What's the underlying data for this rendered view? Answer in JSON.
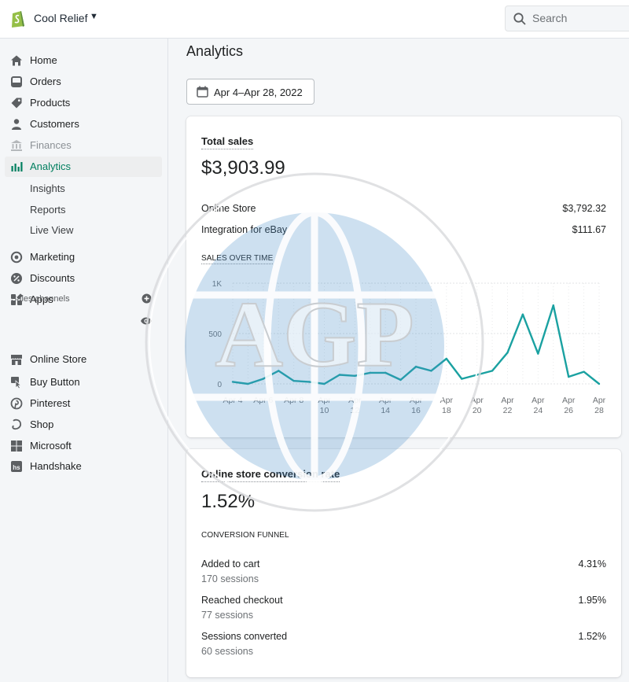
{
  "topbar": {
    "store_name": "Cool Relief",
    "search_placeholder": "Search"
  },
  "sidebar": {
    "items": [
      {
        "label": "Home",
        "icon": "home-icon"
      },
      {
        "label": "Orders",
        "icon": "orders-icon"
      },
      {
        "label": "Products",
        "icon": "tag-icon"
      },
      {
        "label": "Customers",
        "icon": "person-icon"
      },
      {
        "label": "Finances",
        "icon": "bank-icon"
      },
      {
        "label": "Analytics",
        "icon": "bar-chart-icon"
      },
      {
        "label": "Insights"
      },
      {
        "label": "Reports"
      },
      {
        "label": "Live View"
      },
      {
        "label": "Marketing",
        "icon": "target-icon"
      },
      {
        "label": "Discounts",
        "icon": "discount-icon"
      },
      {
        "label": "Apps",
        "icon": "apps-icon"
      }
    ],
    "sales_channels_title": "Sales channels",
    "channels": [
      {
        "label": "Online Store",
        "icon": "store-icon"
      },
      {
        "label": "Buy Button",
        "icon": "buy-button-icon"
      },
      {
        "label": "Pinterest",
        "icon": "pinterest-icon"
      },
      {
        "label": "Shop",
        "icon": "shop-icon"
      },
      {
        "label": "Microsoft",
        "icon": "microsoft-icon"
      },
      {
        "label": "Handshake",
        "icon": "handshake-icon"
      }
    ]
  },
  "main": {
    "title": "Analytics",
    "date_range": "Apr 4–Apr 28, 2022"
  },
  "total_sales": {
    "title": "Total sales",
    "amount": "$3,903.99",
    "rows": [
      {
        "label": "Online Store",
        "value": "$3,792.32"
      },
      {
        "label": "Integration for eBay",
        "value": "$111.67"
      }
    ],
    "chart_heading": "SALES OVER TIME"
  },
  "chart_data": {
    "type": "line",
    "title": "SALES OVER TIME",
    "x_ticks": [
      [
        "Apr 4"
      ],
      [
        "Apr 6"
      ],
      [
        "Apr 8"
      ],
      [
        "Apr",
        "10"
      ],
      [
        "Apr",
        "12"
      ],
      [
        "Apr",
        "14"
      ],
      [
        "Apr",
        "16"
      ],
      [
        "Apr",
        "18"
      ],
      [
        "Apr",
        "20"
      ],
      [
        "Apr",
        "22"
      ],
      [
        "Apr",
        "24"
      ],
      [
        "Apr",
        "26"
      ],
      [
        "Apr",
        "28"
      ]
    ],
    "y_ticks": [
      "1K",
      "500",
      "0"
    ],
    "ylim": [
      0,
      1000
    ],
    "color": "#1aa1a1",
    "series": [
      {
        "x": [
          "Apr 4",
          "Apr 5",
          "Apr 6",
          "Apr 7",
          "Apr 8",
          "Apr 9",
          "Apr 10",
          "Apr 11",
          "Apr 12",
          "Apr 13",
          "Apr 14",
          "Apr 15",
          "Apr 16",
          "Apr 17",
          "Apr 18",
          "Apr 19",
          "Apr 20",
          "Apr 21",
          "Apr 22",
          "Apr 23",
          "Apr 24",
          "Apr 25",
          "Apr 26",
          "Apr 27",
          "Apr 28"
        ],
        "values": [
          20,
          0,
          50,
          130,
          30,
          20,
          0,
          90,
          80,
          110,
          110,
          40,
          170,
          130,
          250,
          50,
          90,
          130,
          310,
          690,
          300,
          780,
          70,
          120,
          0
        ]
      }
    ]
  },
  "conversion": {
    "title": "Online store conversion rate",
    "rate": "1.52%",
    "funnel_heading": "CONVERSION FUNNEL",
    "rows": [
      {
        "label": "Added to cart",
        "sessions": "170 sessions",
        "value": "4.31%"
      },
      {
        "label": "Reached checkout",
        "sessions": "77 sessions",
        "value": "1.95%"
      },
      {
        "label": "Sessions converted",
        "sessions": "60 sessions",
        "value": "1.52%"
      }
    ]
  },
  "watermark": {
    "text": "AGP"
  },
  "colors": {
    "accent_green": "#007f5f",
    "shopify_green": "#95bf47",
    "chart_line": "#1aa1a1"
  }
}
